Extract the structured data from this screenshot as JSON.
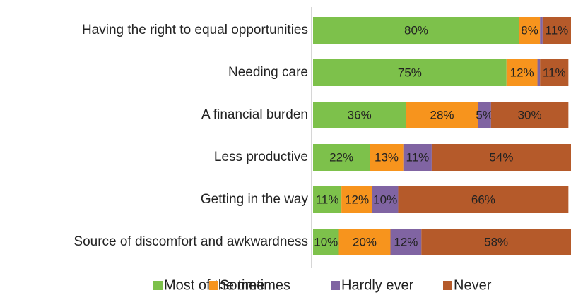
{
  "chart_data": {
    "type": "stacked_barh",
    "categories": [
      "Having the right to equal opportunities",
      "Needing care",
      "A financial burden",
      "Less productive",
      "Getting in the way",
      "Source of discomfort and awkwardness"
    ],
    "series": [
      {
        "name": "Most of the time",
        "color": "#7dc14b",
        "values": [
          80,
          75,
          36,
          22,
          11,
          10
        ],
        "value_labels": [
          "80%",
          "75%",
          "36%",
          "22%",
          "11%",
          "10%"
        ]
      },
      {
        "name": "Sometimes",
        "color": "#f7941d",
        "values": [
          8,
          12,
          28,
          13,
          12,
          20
        ],
        "value_labels": [
          "8%",
          "12%",
          "28%",
          "13%",
          "12%",
          "20%"
        ]
      },
      {
        "name": "Hardly ever",
        "color": "#8064a2",
        "values": [
          1,
          1,
          5,
          11,
          10,
          12
        ],
        "value_labels": [
          null,
          null,
          "5%",
          "11%",
          "10%",
          "12%"
        ]
      },
      {
        "name": "Never",
        "color": "#b55a2a",
        "values": [
          11,
          11,
          30,
          54,
          66,
          58
        ],
        "value_labels": [
          "11%",
          "11%",
          "30%",
          "54%",
          "66%",
          "58%"
        ]
      }
    ],
    "xlim": [
      0,
      100
    ],
    "legend": "bottom"
  }
}
